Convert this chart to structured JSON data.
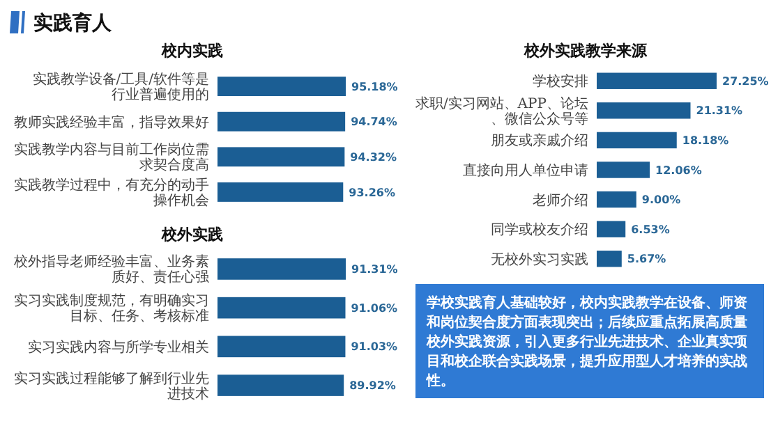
{
  "chart_data": [
    {
      "type": "other",
      "title": "实践育人",
      "annotations": [
        "学校实践育人基础较好，校内实践教学在设备、师资和岗位契合度方面表现突出；后续应重点拓展高质量校外实践资源，引入更多行业先进技术、企业真实项目和校企联合实践场景，提升应用型人才培养的实战性。"
      ]
    },
    {
      "type": "bar",
      "orientation": "horizontal",
      "title": "校内实践",
      "color": "#1b5e94",
      "categories": [
        "实践教学设备/工具/软件等是行业普遍使用的",
        "教师实践经验丰富，指导效果好",
        "实践教学内容与目前工作岗位需求契合度高",
        "实践教学过程中，有充分的动手操作机会"
      ],
      "values": [
        95.18,
        94.74,
        94.32,
        93.26
      ],
      "value_labels": [
        "95.18%",
        "94.74%",
        "94.32%",
        "93.26%"
      ]
    },
    {
      "type": "bar",
      "orientation": "horizontal",
      "title": "校外实践",
      "color": "#1b5e94",
      "categories": [
        "校外指导老师经验丰富、业务素质好、责任心强",
        "实习实践制度规范，有明确实习目标、任务、考核标准",
        "实习实践内容与所学专业相关",
        "实习实践过程能够了解到行业先进技术"
      ],
      "values": [
        91.31,
        91.06,
        91.03,
        89.92
      ],
      "value_labels": [
        "91.31%",
        "91.06%",
        "91.03%",
        "89.92%"
      ]
    },
    {
      "type": "bar",
      "orientation": "horizontal",
      "title": "校外实践教学来源",
      "color": "#1b5e94",
      "categories": [
        "学校安排",
        "求职/实习网站、APP、论坛、微信公众号等",
        "朋友或亲戚介绍",
        "直接向用人单位申请",
        "老师介绍",
        "同学或校友介绍",
        "无校外实习实践"
      ],
      "values": [
        27.25,
        21.31,
        18.18,
        12.06,
        9.0,
        6.53,
        5.67
      ],
      "value_labels": [
        "27.25%",
        "21.31%",
        "18.18%",
        "12.06%",
        "9.00%",
        "6.53%",
        "5.67%"
      ]
    }
  ]
}
